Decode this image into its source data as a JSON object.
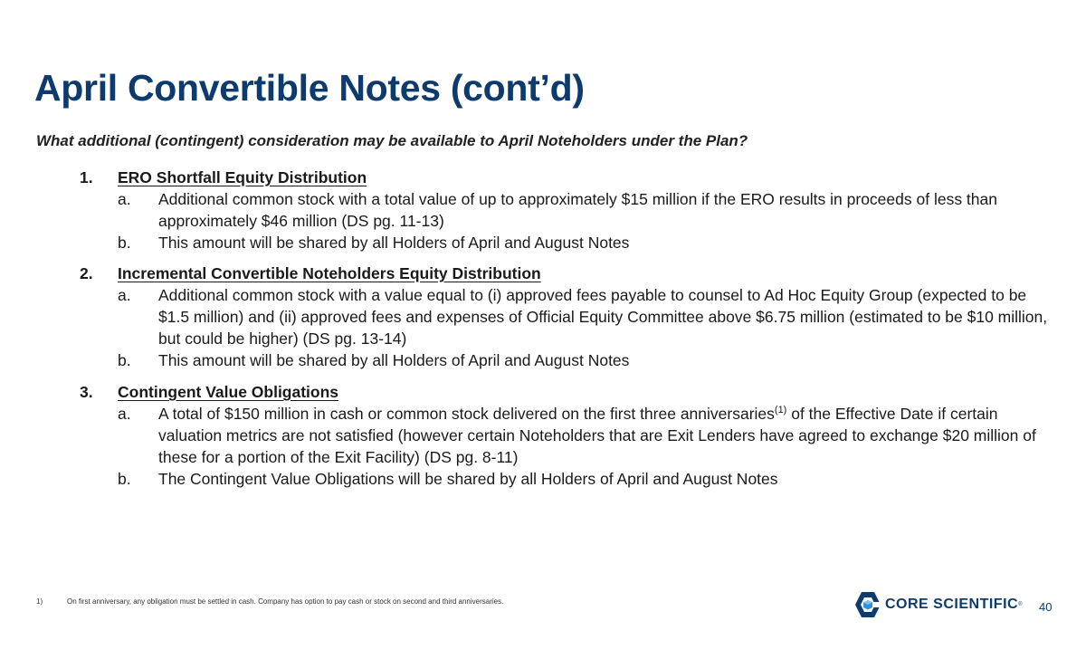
{
  "title": "April Convertible Notes (cont’d)",
  "subtitle": "What additional (contingent) consideration may be available to April Noteholders under the Plan?",
  "sections": [
    {
      "number": "1.",
      "heading": "ERO Shortfall Equity Distribution",
      "items": [
        {
          "letter": "a.",
          "text": "Additional common stock with a total value of up to approximately $15 million if the ERO results in proceeds of less than approximately $46 million (DS pg. 11-13)"
        },
        {
          "letter": "b.",
          "text": "This amount will be shared by all Holders of April and August Notes"
        }
      ]
    },
    {
      "number": "2.",
      "heading": "Incremental Convertible Noteholders Equity Distribution",
      "items": [
        {
          "letter": "a.",
          "text": "Additional common stock with a value equal to (i) approved fees payable to counsel to Ad Hoc Equity Group (expected to be $1.5 million) and (ii) approved fees and expenses of Official Equity Committee above $6.75 million (estimated to be $10 million, but could be higher) (DS pg. 13-14)"
        },
        {
          "letter": "b.",
          "text": "This amount will be shared by all Holders of April and August Notes"
        }
      ]
    },
    {
      "number": "3.",
      "heading": "Contingent Value Obligations",
      "items": [
        {
          "letter": "a.",
          "text_before": "A total of $150 million in cash or common stock delivered on the first three anniversaries",
          "superscript": "(1)",
          "text_after": " of the Effective Date if certain valuation metrics are not satisfied (however certain Noteholders that are Exit Lenders have agreed to exchange $20 million of these for a portion of the Exit Facility) (DS pg. 8-11)"
        },
        {
          "letter": "b.",
          "text": "The Contingent Value Obligations will be shared by all Holders of April and August Notes"
        }
      ]
    }
  ],
  "footnote": {
    "number": "1)",
    "text": "On first anniversary, any obligation must be settled in cash. Company has option to pay cash or stock on second and third anniversaries."
  },
  "logo": {
    "text": "CORE SCIENTIFIC",
    "registered": "®"
  },
  "page_number": "40",
  "colors": {
    "brand": "#0d3b6e",
    "logo_accent": "#2f8fd8"
  }
}
